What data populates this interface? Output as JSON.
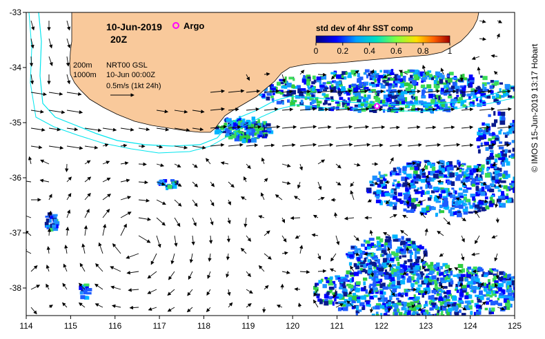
{
  "title": {
    "date": "10-Jun-2019",
    "time": "20Z",
    "argo_label": "Argo"
  },
  "legend": {
    "title": "std dev of 4hr SST comp",
    "ticks": [
      "0",
      "0.2",
      "0.4",
      "0.6",
      "0.8",
      "1"
    ],
    "contour_200": "200m",
    "contour_1000": "1000m",
    "current_source": "NRT00 GSL",
    "current_time": "10-Jun 00:00Z",
    "arrow_scale": "0.5m/s (1kt 24h)"
  },
  "axes": {
    "x_ticks": [
      "114",
      "115",
      "116",
      "117",
      "118",
      "119",
      "120",
      "121",
      "122",
      "123",
      "124",
      "125"
    ],
    "y_ticks": [
      "-33",
      "-34",
      "-35",
      "-36",
      "-37",
      "-38"
    ],
    "x_range": [
      114,
      125
    ],
    "y_range": [
      -38.5,
      -33
    ]
  },
  "argo": {
    "lon": 121.9,
    "lat": -34.7
  },
  "credit": "© IMOS 15-Jun-2019 13:17 Hobart",
  "colors": {
    "land": "#f9c99b",
    "ocean": "#ffffff",
    "argo": "#ff00ff",
    "contour": "#00e5ee",
    "sst_low": "#0a1a8c",
    "sst_mid": "#1e90ff",
    "sst_green": "#2ecc40"
  }
}
